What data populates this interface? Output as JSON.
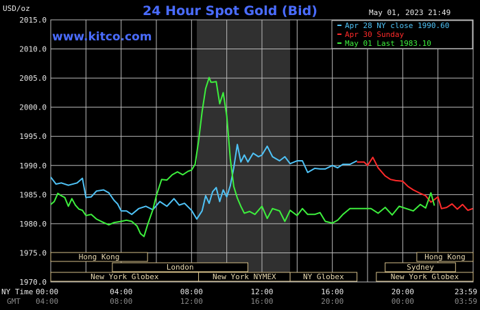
{
  "chart_data": {
    "type": "line",
    "title": "24 Hour Spot Gold (Bid)",
    "website": "www.kitco.com",
    "timestamp": "May 01, 2023 21:49",
    "ylabel": "USD/oz",
    "ylim": [
      1970,
      2015
    ],
    "yticks": [
      "1970.0",
      "1975.0",
      "1980.0",
      "1985.0",
      "1990.0",
      "1995.0",
      "2000.0",
      "2005.0",
      "2010.0",
      "2015.0"
    ],
    "xlim": [
      0,
      24
    ],
    "xticks_ny": [
      "00:00",
      "04:00",
      "08:00",
      "12:00",
      "16:00",
      "20:00",
      "23:59"
    ],
    "xticks_gmt": [
      "04:00",
      "08:00",
      "12:00",
      "16:00",
      "20:00",
      "00:00",
      "03:59"
    ],
    "x_tick_hours": [
      0,
      4,
      8,
      12,
      16,
      20,
      23.98
    ],
    "ny_time_label": "NY Time",
    "gmt_label": "GMT",
    "shaded_region": [
      8.3,
      13.6
    ],
    "grid": true,
    "legend_position": "top-right",
    "sessions": [
      {
        "label": "Hong Kong",
        "start": 0,
        "end": 5.5,
        "row": 0
      },
      {
        "label": "London",
        "start": 3.5,
        "end": 11.2,
        "row": 1
      },
      {
        "label": "New York Globex",
        "start": 0,
        "end": 8.4,
        "row": 2
      },
      {
        "label": "New York NYMEX",
        "start": 8.4,
        "end": 13.6,
        "row": 2
      },
      {
        "label": "NY Globex",
        "start": 13.6,
        "end": 17.4,
        "row": 2
      },
      {
        "label": "Hong Kong",
        "start": 20.8,
        "end": 24,
        "row": 0
      },
      {
        "label": "Sydney",
        "start": 19.0,
        "end": 23.0,
        "row": 1
      },
      {
        "label": "New York Globex",
        "start": 18.5,
        "end": 24,
        "row": 2
      }
    ],
    "series": [
      {
        "name": "Apr 28 NY close 1990.60",
        "color": "#4fc3f7",
        "x": [
          0,
          0.3,
          0.6,
          1.0,
          1.5,
          1.8,
          2.0,
          2.3,
          2.6,
          3.0,
          3.3,
          3.6,
          3.8,
          4.0,
          4.3,
          4.6,
          5.0,
          5.4,
          5.8,
          6.2,
          6.6,
          7.0,
          7.3,
          7.6,
          8.0,
          8.3,
          8.6,
          8.8,
          9.0,
          9.2,
          9.4,
          9.6,
          9.8,
          10.0,
          10.2,
          10.4,
          10.6,
          10.8,
          11.0,
          11.2,
          11.5,
          11.8,
          12.0,
          12.3,
          12.6,
          13.0,
          13.3,
          13.6,
          14.0,
          14.3,
          14.6,
          15.0,
          15.3,
          15.6,
          16.0,
          16.3,
          16.6,
          17.0,
          17.4
        ],
        "values": [
          1988,
          1986.8,
          1987,
          1986.6,
          1987,
          1987.8,
          1984.5,
          1984.6,
          1985.6,
          1985.8,
          1985.3,
          1984,
          1983.4,
          1982.2,
          1982.2,
          1981.6,
          1982.6,
          1983,
          1982.4,
          1983.8,
          1983,
          1984.3,
          1983.2,
          1983.5,
          1982.3,
          1980.8,
          1982.2,
          1984.8,
          1983.5,
          1985.5,
          1986.2,
          1983.8,
          1985.8,
          1984.6,
          1986.5,
          1989.6,
          1993.6,
          1990.6,
          1991.8,
          1990.6,
          1992.1,
          1991.5,
          1991.8,
          1993.3,
          1991.5,
          1990.8,
          1991.5,
          1990.3,
          1990.8,
          1990.8,
          1988.8,
          1989.5,
          1989.4,
          1989.4,
          1990.0,
          1989.6,
          1990.2,
          1990.2,
          1990.8
        ]
      },
      {
        "name": "Apr 30 Sunday",
        "color": "#ff2a2a",
        "x": [
          17.4,
          17.8,
          18.0,
          18.3,
          18.6,
          19.0,
          19.3,
          19.6,
          20.0,
          20.3,
          20.6,
          21.0,
          21.3,
          21.6,
          22.0,
          22.2,
          22.5,
          22.8,
          23.1,
          23.4,
          23.7,
          23.98
        ],
        "values": [
          1990.6,
          1990.6,
          1990,
          1991.4,
          1989.6,
          1988.2,
          1987.6,
          1987.4,
          1987.3,
          1986.4,
          1985.8,
          1985.2,
          1984.8,
          1983.7,
          1984.6,
          1982.6,
          1982.8,
          1983.4,
          1982.5,
          1983.3,
          1982.3,
          1982.6
        ]
      },
      {
        "name": "May 01 Last 1983.10",
        "color": "#3df03d",
        "x": [
          0,
          0.2,
          0.4,
          0.6,
          0.8,
          1.0,
          1.2,
          1.4,
          1.6,
          1.8,
          2.0,
          2.3,
          2.6,
          3.0,
          3.3,
          3.6,
          4.0,
          4.3,
          4.6,
          4.9,
          5.1,
          5.3,
          5.5,
          5.8,
          6.0,
          6.3,
          6.6,
          6.9,
          7.2,
          7.5,
          7.8,
          8.0,
          8.2,
          8.4,
          8.6,
          8.8,
          9.0,
          9.1,
          9.2,
          9.4,
          9.6,
          9.8,
          10.0,
          10.2,
          10.4,
          10.6,
          10.8,
          11.0,
          11.3,
          11.6,
          12.0,
          12.3,
          12.6,
          13.0,
          13.3,
          13.6,
          14.0,
          14.3,
          14.6,
          15.0,
          15.3,
          15.6,
          16.0,
          16.3,
          16.6,
          17.0,
          17.4,
          17.8,
          18.2,
          18.6,
          19.0,
          19.4,
          19.8,
          20.2,
          20.6,
          21.0,
          21.3,
          21.6,
          21.8
        ],
        "values": [
          1983.3,
          1983.8,
          1985.2,
          1984.8,
          1984.5,
          1983,
          1984.3,
          1983.2,
          1982.5,
          1982.3,
          1981.4,
          1981.6,
          1980.8,
          1980.2,
          1979.8,
          1980.2,
          1980.4,
          1980.6,
          1980.4,
          1979.6,
          1978.3,
          1977.8,
          1979.8,
          1982.4,
          1984.8,
          1987.6,
          1987.5,
          1988.4,
          1988.9,
          1988.4,
          1989,
          1989.2,
          1990.2,
          1994.2,
          1999.2,
          2003.2,
          2005.1,
          2004.3,
          2004.3,
          2004.4,
          2000.6,
          2002.5,
          1998.5,
          1991.2,
          1986.4,
          1984.4,
          1983,
          1981.8,
          1982.1,
          1981.6,
          1983,
          1980.9,
          1982.6,
          1982.2,
          1980.4,
          1982.3,
          1981.4,
          1982.6,
          1981.6,
          1981.6,
          1981.9,
          1980.4,
          1980.1,
          1980.6,
          1981.6,
          1982.6,
          1982.6,
          1982.6,
          1982.6,
          1981.8,
          1982.8,
          1981.5,
          1983.0,
          1982.6,
          1982.2,
          1983.3,
          1982.7,
          1985.3,
          1983.1
        ]
      }
    ]
  },
  "colors": {
    "background": "#000000",
    "grid": "#bcbcbc",
    "shaded": "#303030",
    "title": "#4a6cff",
    "session_border": "#d6c08a",
    "session_text": "#e8d9b0"
  }
}
